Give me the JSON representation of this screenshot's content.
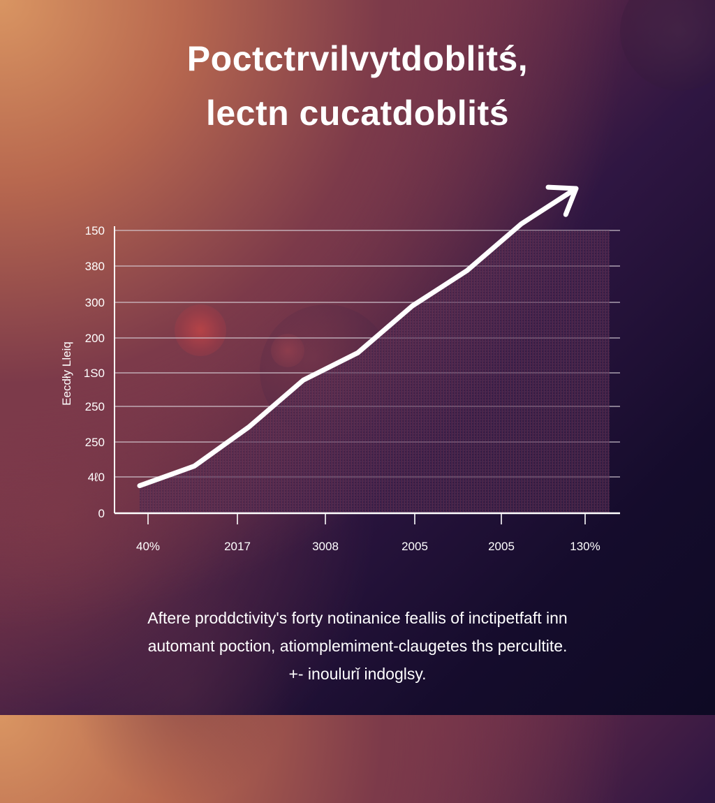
{
  "title": {
    "line1": "Poctctrvilvytdoblitś,",
    "line2": "lectn cucatdoblitś"
  },
  "caption": {
    "line1": "Aftere proddctivity's forty notinanice feallis of inctipetfaft inn",
    "line2": "automant poction, atiomplemiment-claugetes ths percultite.",
    "line3": "+- inoulurǐ indoglsy."
  },
  "chart_data": {
    "type": "area",
    "ylabel": "Eecdły Lleiq",
    "y_tick_labels": [
      "150",
      "380",
      "300",
      "200",
      "1S0",
      "250",
      "250",
      "4ℓ0",
      "0"
    ],
    "x_tick_labels": [
      "40%",
      "2017",
      "3008",
      "2005",
      "2005",
      "130%"
    ],
    "grid": true,
    "series": [
      {
        "values": [
          0.4,
          0.9,
          1.9,
          3.1,
          3.8,
          5.0,
          5.9,
          7.1,
          8.0
        ]
      }
    ],
    "ylim": [
      0,
      8
    ],
    "arrow_end": true,
    "colors": {
      "line": "#ffffff",
      "grid": "#d8d0d8",
      "fill_top": "#7a3a5a",
      "fill_bottom": "#3a1f45"
    }
  }
}
